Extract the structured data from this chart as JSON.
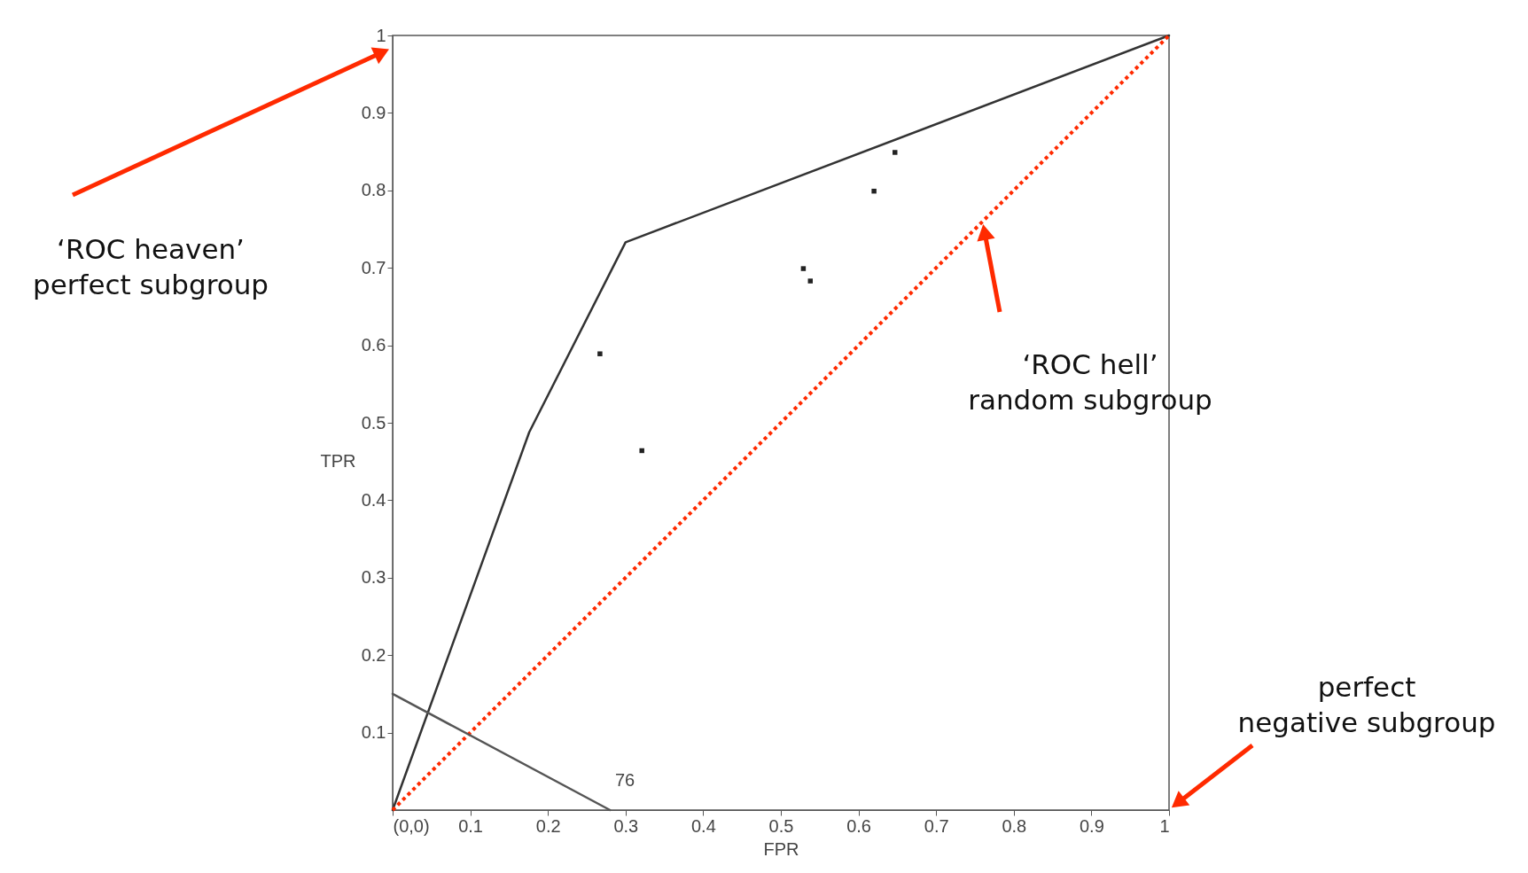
{
  "chart_data": {
    "type": "line",
    "xlabel": "FPR",
    "ylabel": "TPR",
    "xlim": [
      0,
      1
    ],
    "ylim": [
      0,
      1
    ],
    "xticks": [
      {
        "value": 0,
        "label": "(0,0)"
      },
      0.1,
      0.2,
      0.3,
      0.4,
      0.5,
      0.6,
      0.7,
      0.8,
      0.9,
      1
    ],
    "yticks": [
      0.1,
      0.2,
      0.3,
      0.4,
      0.5,
      0.6,
      0.7,
      0.8,
      0.9,
      1
    ],
    "grid": false,
    "series": [
      {
        "color": "#333333",
        "x": [
          0,
          0.176,
          0.3,
          1
        ],
        "values": [
          0,
          0.488,
          0.733,
          1
        ],
        "marker": "none",
        "line_style": "solid"
      },
      {
        "type": "scatter",
        "color": "#222222",
        "x": [
          0.267,
          0.321,
          0.529,
          0.538,
          0.62,
          0.647
        ],
        "values": [
          0.589,
          0.464,
          0.699,
          0.683,
          0.799,
          0.849
        ],
        "marker": "square"
      },
      {
        "color": "#ff2a00",
        "x": [
          0,
          1
        ],
        "values": [
          0,
          1
        ],
        "marker": "none",
        "line_style": "dotted"
      },
      {
        "color": "#555555",
        "x": [
          0,
          0.28
        ],
        "values": [
          0.15,
          0
        ],
        "marker": "none",
        "line_style": "solid"
      }
    ],
    "annotations": [
      "‘ROC heaven’\nperfect subgroup",
      "‘ROC hell’\nrandom subgroup",
      "perfect\nnegative subgroup",
      "76"
    ]
  }
}
